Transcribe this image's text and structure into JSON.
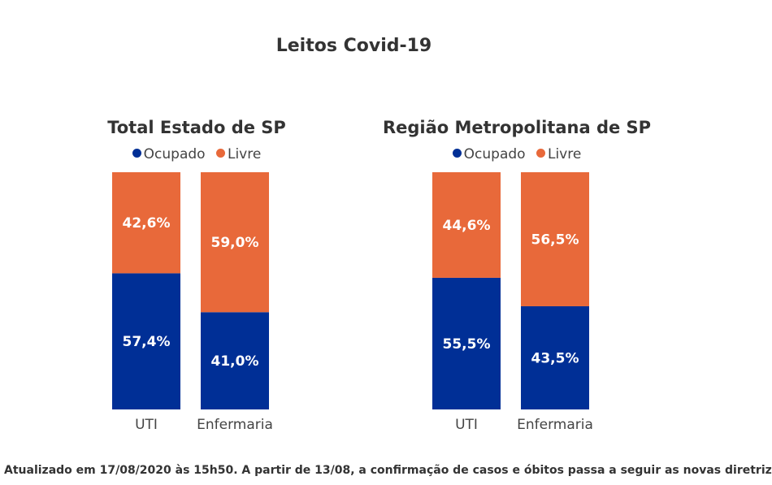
{
  "title": "Leitos Covid-19",
  "colors": {
    "ocupado": "#002F96",
    "livre": "#E8693A"
  },
  "legend": {
    "ocupado": "Ocupado",
    "livre": "Livre"
  },
  "footnote": "Atualizado em 17/08/2020 às 15h50. A partir de 13/08, a confirmação de casos e óbitos passa a seguir as novas diretriz",
  "chart_data": [
    {
      "type": "bar",
      "stacked": true,
      "title": "Total Estado de SP",
      "categories": [
        "UTI",
        "Enfermaria"
      ],
      "ylim": [
        0,
        100
      ],
      "legend_position": "top",
      "grid": false,
      "series": [
        {
          "name": "Ocupado",
          "values": [
            57.4,
            41.0
          ],
          "labels": [
            "57,4%",
            "41,0%"
          ]
        },
        {
          "name": "Livre",
          "values": [
            42.6,
            59.0
          ],
          "labels": [
            "42,6%",
            "59,0%"
          ]
        }
      ]
    },
    {
      "type": "bar",
      "stacked": true,
      "title": "Região Metropolitana de SP",
      "categories": [
        "UTI",
        "Enfermaria"
      ],
      "ylim": [
        0,
        100
      ],
      "legend_position": "top",
      "grid": false,
      "series": [
        {
          "name": "Ocupado",
          "values": [
            55.5,
            43.5
          ],
          "labels": [
            "55,5%",
            "43,5%"
          ]
        },
        {
          "name": "Livre",
          "values": [
            44.6,
            56.5
          ],
          "labels": [
            "44,6%",
            "56,5%"
          ]
        }
      ]
    }
  ]
}
